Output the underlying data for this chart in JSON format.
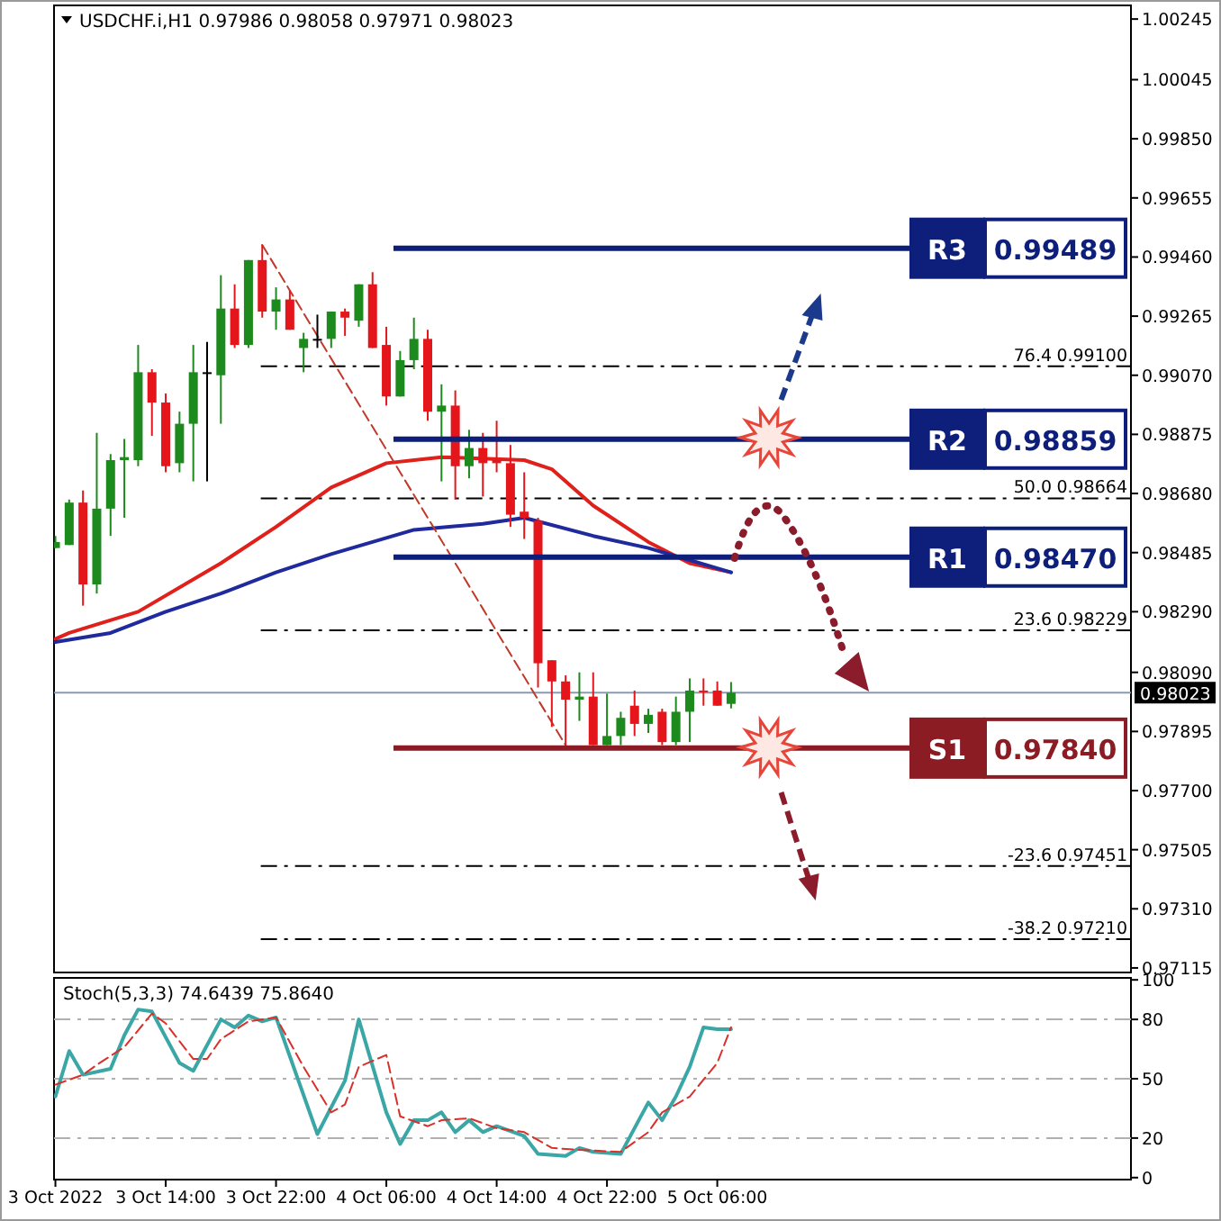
{
  "chart_data": [
    {
      "type": "candlestick",
      "title": "USDCHF.i,H1  0.97986 0.98058 0.97971 0.98023",
      "x": [
        "2022-10-03T06:00",
        "2022-10-03T07:00",
        "2022-10-03T08:00",
        "2022-10-03T09:00",
        "2022-10-03T10:00",
        "2022-10-03T11:00",
        "2022-10-03T12:00",
        "2022-10-03T13:00",
        "2022-10-03T14:00",
        "2022-10-03T15:00",
        "2022-10-03T16:00",
        "2022-10-03T17:00",
        "2022-10-03T18:00",
        "2022-10-03T19:00",
        "2022-10-03T20:00",
        "2022-10-03T21:00",
        "2022-10-03T22:00",
        "2022-10-03T23:00",
        "2022-10-04T00:00",
        "2022-10-04T01:00",
        "2022-10-04T02:00",
        "2022-10-04T03:00",
        "2022-10-04T04:00",
        "2022-10-04T05:00",
        "2022-10-04T06:00",
        "2022-10-04T07:00",
        "2022-10-04T08:00",
        "2022-10-04T09:00",
        "2022-10-04T10:00",
        "2022-10-04T11:00",
        "2022-10-04T12:00",
        "2022-10-04T13:00",
        "2022-10-04T14:00",
        "2022-10-04T15:00",
        "2022-10-04T16:00",
        "2022-10-04T17:00",
        "2022-10-04T18:00",
        "2022-10-04T19:00",
        "2022-10-04T20:00",
        "2022-10-04T21:00",
        "2022-10-04T22:00",
        "2022-10-04T23:00",
        "2022-10-05T00:00",
        "2022-10-05T01:00",
        "2022-10-05T02:00",
        "2022-10-05T03:00",
        "2022-10-05T04:00",
        "2022-10-05T05:00",
        "2022-10-05T06:00",
        "2022-10-05T07:00"
      ],
      "ohlc": [
        [
          0.985,
          0.9854,
          0.985,
          0.9852
        ],
        [
          0.9851,
          0.9866,
          0.9851,
          0.9865
        ],
        [
          0.9865,
          0.9869,
          0.9831,
          0.9838
        ],
        [
          0.9838,
          0.9888,
          0.9835,
          0.9863
        ],
        [
          0.9863,
          0.9881,
          0.9854,
          0.9879
        ],
        [
          0.9879,
          0.9886,
          0.986,
          0.988
        ],
        [
          0.9879,
          0.9917,
          0.9877,
          0.9908
        ],
        [
          0.9908,
          0.9909,
          0.9887,
          0.9898
        ],
        [
          0.9898,
          0.9901,
          0.9875,
          0.9877
        ],
        [
          0.9878,
          0.9895,
          0.9875,
          0.9891
        ],
        [
          0.9891,
          0.9917,
          0.9872,
          0.9908
        ],
        [
          0.9908,
          0.9918,
          0.9872,
          0.9908
        ],
        [
          0.9907,
          0.994,
          0.9891,
          0.9929
        ],
        [
          0.9929,
          0.9937,
          0.9916,
          0.9917
        ],
        [
          0.9917,
          0.9945,
          0.9916,
          0.9945
        ],
        [
          0.9945,
          0.995,
          0.9926,
          0.9928
        ],
        [
          0.9928,
          0.9936,
          0.9922,
          0.9932
        ],
        [
          0.9932,
          0.9935,
          0.9922,
          0.9922
        ],
        [
          0.9916,
          0.9921,
          0.9908,
          0.9919
        ],
        [
          0.9919,
          0.9927,
          0.9916,
          0.9919
        ],
        [
          0.9919,
          0.9928,
          0.9916,
          0.9928
        ],
        [
          0.9928,
          0.9929,
          0.992,
          0.9926
        ],
        [
          0.9925,
          0.9937,
          0.9923,
          0.9937
        ],
        [
          0.9937,
          0.9941,
          0.9916,
          0.9916
        ],
        [
          0.9917,
          0.9923,
          0.9897,
          0.99
        ],
        [
          0.99,
          0.9915,
          0.99,
          0.9912
        ],
        [
          0.9912,
          0.9926,
          0.9909,
          0.9919
        ],
        [
          0.9919,
          0.9922,
          0.9892,
          0.9895
        ],
        [
          0.9895,
          0.9904,
          0.9872,
          0.9897
        ],
        [
          0.9897,
          0.9902,
          0.9866,
          0.9877
        ],
        [
          0.9877,
          0.9889,
          0.9873,
          0.9883
        ],
        [
          0.9883,
          0.9888,
          0.9867,
          0.9878
        ],
        [
          0.9879,
          0.9892,
          0.9875,
          0.9878
        ],
        [
          0.9878,
          0.9884,
          0.9857,
          0.9861
        ],
        [
          0.9862,
          0.9875,
          0.9853,
          0.986
        ],
        [
          0.9859,
          0.986,
          0.9804,
          0.9812
        ],
        [
          0.9813,
          0.9813,
          0.9791,
          0.9806
        ],
        [
          0.9806,
          0.9808,
          0.9784,
          0.98
        ],
        [
          0.98,
          0.9809,
          0.9793,
          0.9801
        ],
        [
          0.9801,
          0.9809,
          0.9785,
          0.9785
        ],
        [
          0.9785,
          0.9802,
          0.9785,
          0.9788
        ],
        [
          0.9788,
          0.9796,
          0.9785,
          0.9794
        ],
        [
          0.9798,
          0.9803,
          0.9788,
          0.9792
        ],
        [
          0.9792,
          0.9797,
          0.9789,
          0.9795
        ],
        [
          0.9796,
          0.9797,
          0.9785,
          0.9786
        ],
        [
          0.9786,
          0.9801,
          0.9785,
          0.9796
        ],
        [
          0.9796,
          0.9807,
          0.9786,
          0.9803
        ],
        [
          0.9803,
          0.9807,
          0.9798,
          0.9803
        ],
        [
          0.9803,
          0.9806,
          0.9798,
          0.9798
        ],
        [
          0.97986,
          0.98058,
          0.97971,
          0.98023
        ]
      ],
      "colors": [
        "#1c8a1c",
        "#1c8a1c",
        "#e5161b",
        "#1c8a1c",
        "#1c8a1c",
        "#1c8a1c",
        "#1c8a1c",
        "#e5161b",
        "#e5161b",
        "#1c8a1c",
        "#1c8a1c",
        "#000000",
        "#1c8a1c",
        "#e5161b",
        "#1c8a1c",
        "#e5161b",
        "#1c8a1c",
        "#e5161b",
        "#1c8a1c",
        "#000000",
        "#1c8a1c",
        "#e5161b",
        "#1c8a1c",
        "#e5161b",
        "#e5161b",
        "#1c8a1c",
        "#1c8a1c",
        "#e5161b",
        "#1c8a1c",
        "#e5161b",
        "#1c8a1c",
        "#e5161b",
        "#e5161b",
        "#e5161b",
        "#e5161b",
        "#e5161b",
        "#e5161b",
        "#e5161b",
        "#1c8a1c",
        "#e5161b",
        "#1c8a1c",
        "#1c8a1c",
        "#e5161b",
        "#1c8a1c",
        "#e5161b",
        "#1c8a1c",
        "#1c8a1c",
        "#e5161b",
        "#e5161b",
        "#1c8a1c"
      ],
      "series": [
        {
          "type": "line",
          "color": "#e0201b",
          "x": [
            "2022-10-03T06:00",
            "2022-10-03T07:00",
            "2022-10-03T12:00",
            "2022-10-03T18:00",
            "2022-10-03T22:00",
            "2022-10-04T02:00",
            "2022-10-04T06:00",
            "2022-10-04T10:00",
            "2022-10-04T16:00",
            "2022-10-04T18:00",
            "2022-10-04T21:00",
            "2022-10-05T01:00",
            "2022-10-05T04:00",
            "2022-10-05T07:00"
          ],
          "values": [
            0.982,
            0.9822,
            0.9829,
            0.9845,
            0.9857,
            0.987,
            0.9878,
            0.988,
            0.9879,
            0.9876,
            0.9864,
            0.9852,
            0.9845,
            0.9842
          ]
        },
        {
          "type": "line",
          "color": "#1f2a9c",
          "x": [
            "2022-10-03T06:00",
            "2022-10-03T10:00",
            "2022-10-03T14:00",
            "2022-10-03T18:00",
            "2022-10-03T22:00",
            "2022-10-04T02:00",
            "2022-10-04T08:00",
            "2022-10-04T13:00",
            "2022-10-04T16:00",
            "2022-10-04T21:00",
            "2022-10-05T01:00",
            "2022-10-05T07:00"
          ],
          "values": [
            0.9819,
            0.9822,
            0.9829,
            0.9835,
            0.9842,
            0.9848,
            0.9856,
            0.9858,
            0.986,
            0.9854,
            0.985,
            0.9842
          ]
        },
        {
          "type": "line",
          "color": "#c0392b",
          "line_style": "dashed",
          "x": [
            "2022-10-03T21:00",
            "2022-10-04T19:00"
          ],
          "values": [
            0.995,
            0.9785
          ]
        }
      ],
      "xlim": [
        "2022-10-03T05:54",
        "2022-10-06T12:00"
      ],
      "ylim": [
        0.971,
        1.0029
      ],
      "yticks": [
        0.97115,
        {
          "value": 0.9731,
          "label": "0.97310"
        },
        0.97505,
        {
          "value": 0.977,
          "label": "0.97700"
        },
        0.97895,
        {
          "value": 0.9809,
          "label": "0.98090"
        },
        {
          "value": 0.9829,
          "label": "0.98290"
        },
        0.98485,
        {
          "value": 0.9868,
          "label": "0.98680"
        },
        0.98875,
        {
          "value": 0.9907,
          "label": "0.99070"
        },
        0.99265,
        {
          "value": 0.9946,
          "label": "0.99460"
        },
        0.99655,
        {
          "value": 0.9985,
          "label": "0.99850"
        },
        1.00045,
        1.00245
      ],
      "tick_labels": "y",
      "ref_lines": [
        {
          "axis": "y",
          "value": 0.99489,
          "label": "0.99489",
          "color": "#0d1f7a",
          "line_style": "solid"
        },
        {
          "axis": "y",
          "value": 0.98859,
          "label": "0.98859",
          "color": "#0d1f7a",
          "line_style": "solid"
        },
        {
          "axis": "y",
          "value": 0.9847,
          "label": "0.98470",
          "color": "#0d1f7a",
          "line_style": "solid"
        },
        {
          "axis": "y",
          "value": 0.9784,
          "label": "0.97840",
          "color": "#8b1c24",
          "line_style": "solid"
        },
        {
          "axis": "y",
          "value": 0.991,
          "label": "0.99100",
          "color": "#000000",
          "line_style": "dashed"
        },
        {
          "axis": "y",
          "value": 0.98664,
          "label": "0.98664",
          "color": "#000000",
          "line_style": "dashed"
        },
        {
          "axis": "y",
          "value": 0.98229,
          "label": "0.98229",
          "color": "#000000",
          "line_style": "dashed"
        },
        {
          "axis": "y",
          "value": 0.97451,
          "label": "0.97451",
          "color": "#000000",
          "line_style": "dashed"
        },
        {
          "axis": "y",
          "value": 0.9721,
          "label": "0.97210",
          "color": "#000000",
          "line_style": "dashed"
        },
        {
          "axis": "y",
          "value": 0.98023,
          "label": "0.98023",
          "color": "#8a9bb0",
          "line_style": "solid"
        }
      ],
      "annotations": [
        "R3",
        "R2",
        "R1",
        "S1",
        {
          "text": "76.4",
          "x": "2022-10-06T06:00",
          "y": 0.991
        },
        {
          "text": "50.0",
          "x": "2022-10-06T06:00",
          "y": 0.98664
        },
        {
          "text": "23.6",
          "x": "2022-10-06T06:00",
          "y": 0.98229
        },
        {
          "text": "-23.6",
          "x": "2022-10-06T06:00",
          "y": 0.97451
        },
        {
          "text": "-38.2",
          "x": "2022-10-06T06:00",
          "y": 0.9721
        }
      ]
    },
    {
      "type": "line",
      "title": "Stoch(5,3,3) 74.6439 75.8640",
      "series": [
        {
          "color": "#3aa6a6",
          "x": [
            "2022-10-03T06:00",
            "2022-10-03T07:00",
            "2022-10-03T08:00",
            "2022-10-03T10:00",
            "2022-10-03T11:00",
            "2022-10-03T12:00",
            "2022-10-03T13:00",
            "2022-10-03T15:00",
            "2022-10-03T16:00",
            "2022-10-03T18:00",
            "2022-10-03T19:00",
            "2022-10-03T20:00",
            "2022-10-03T21:00",
            "2022-10-03T22:00",
            "2022-10-04T01:00",
            "2022-10-04T03:00",
            "2022-10-04T04:00",
            "2022-10-04T06:00",
            "2022-10-04T07:00",
            "2022-10-04T08:00",
            "2022-10-04T09:00",
            "2022-10-04T10:00",
            "2022-10-04T11:00",
            "2022-10-04T12:00",
            "2022-10-04T13:00",
            "2022-10-04T14:00",
            "2022-10-04T16:00",
            "2022-10-04T17:00",
            "2022-10-04T19:00",
            "2022-10-04T20:00",
            "2022-10-04T21:00",
            "2022-10-04T23:00",
            "2022-10-05T00:00",
            "2022-10-05T01:00",
            "2022-10-05T02:00",
            "2022-10-05T03:00",
            "2022-10-05T04:00",
            "2022-10-05T05:00",
            "2022-10-05T06:00",
            "2022-10-05T07:00"
          ],
          "values": [
            41,
            64,
            52,
            55,
            72,
            85,
            84,
            58,
            54,
            80,
            76,
            82,
            79,
            81,
            22,
            49,
            80,
            33,
            17,
            29,
            29,
            33,
            23,
            29,
            23,
            26,
            21,
            12,
            11,
            15,
            13,
            12,
            25,
            38,
            29,
            41,
            56,
            76,
            75,
            75
          ]
        },
        {
          "color": "#d9302b",
          "line_style": "dashed",
          "x": [
            "2022-10-03T06:00",
            "2022-10-03T08:00",
            "2022-10-03T09:00",
            "2022-10-03T11:00",
            "2022-10-03T13:00",
            "2022-10-03T14:00",
            "2022-10-03T16:00",
            "2022-10-03T17:00",
            "2022-10-03T18:00",
            "2022-10-03T20:00",
            "2022-10-03T22:00",
            "2022-10-04T00:00",
            "2022-10-04T02:00",
            "2022-10-04T03:00",
            "2022-10-04T04:00",
            "2022-10-04T06:00",
            "2022-10-04T07:00",
            "2022-10-04T09:00",
            "2022-10-04T10:00",
            "2022-10-04T12:00",
            "2022-10-04T14:00",
            "2022-10-04T16:00",
            "2022-10-04T18:00",
            "2022-10-04T20:00",
            "2022-10-04T23:00",
            "2022-10-05T01:00",
            "2022-10-05T02:00",
            "2022-10-05T04:00",
            "2022-10-05T06:00",
            "2022-10-05T07:00"
          ],
          "values": [
            47,
            52,
            57,
            66,
            83,
            78,
            60,
            60,
            70,
            79,
            81,
            56,
            33,
            37,
            56,
            62,
            31,
            26,
            29,
            30,
            25,
            23,
            15,
            14,
            13,
            23,
            33,
            41,
            58,
            76
          ]
        }
      ],
      "xlim": [
        "2022-10-03T05:54",
        "2022-10-06T12:00"
      ],
      "xticks": [
        {
          "value": "2022-10-03T06:00",
          "label": "3 Oct 2022"
        },
        {
          "value": "2022-10-03T14:00",
          "label": "3 Oct 14:00"
        },
        {
          "value": "2022-10-03T22:00",
          "label": "3 Oct 22:00"
        },
        {
          "value": "2022-10-04T06:00",
          "label": "4 Oct 06:00"
        },
        {
          "value": "2022-10-04T14:00",
          "label": "4 Oct 14:00"
        },
        {
          "value": "2022-10-04T22:00",
          "label": "4 Oct 22:00"
        },
        {
          "value": "2022-10-05T06:00",
          "label": "5 Oct 06:00"
        }
      ],
      "ylim": [
        -1,
        101
      ],
      "yticks": [
        0,
        20,
        50,
        80,
        100
      ],
      "ref_lines": [
        {
          "axis": "y",
          "value": 80,
          "color": "#b0b0b0",
          "line_style": "dashed"
        },
        {
          "axis": "y",
          "value": 50,
          "color": "#b0b0b0",
          "line_style": "dashed"
        },
        {
          "axis": "y",
          "value": 20,
          "color": "#b0b0b0",
          "line_style": "dashed"
        }
      ]
    }
  ]
}
